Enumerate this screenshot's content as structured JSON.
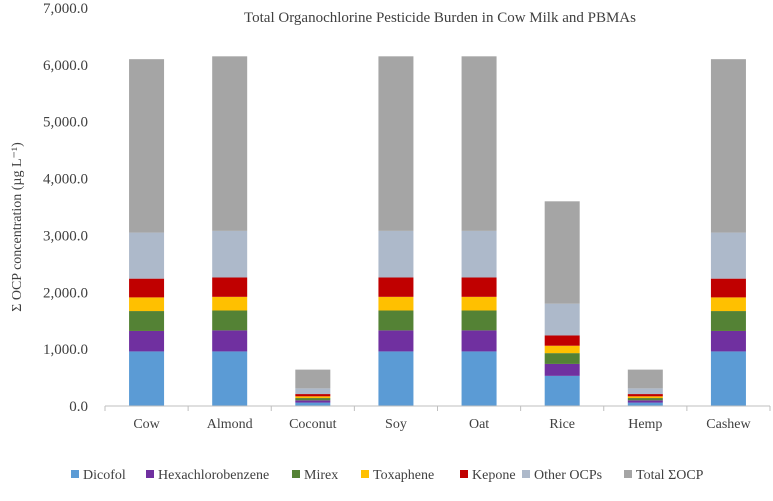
{
  "chart_data": {
    "type": "bar",
    "stacked": true,
    "title": "Total Organochlorine Pesticide Burden in Cow Milk and PBMAs",
    "ylabel": "Σ OCP concentration (µg L⁻¹)",
    "xlabel": "",
    "ylim": [
      0,
      7000
    ],
    "yticks": [
      0,
      1000,
      2000,
      3000,
      4000,
      5000,
      6000,
      7000
    ],
    "ytick_labels": [
      "0.0",
      "1,000.0",
      "2,000.0",
      "3,000.0",
      "4,000.0",
      "5,000.0",
      "6,000.0",
      "7,000.0"
    ],
    "categories": [
      "Cow",
      "Almond",
      "Coconut",
      "Soy",
      "Oat",
      "Rice",
      "Hemp",
      "Cashew"
    ],
    "legend_position": "bottom",
    "grid": false,
    "series": [
      {
        "name": "Dicofol",
        "color": "#5B9BD5",
        "values": [
          960,
          960,
          60,
          960,
          960,
          530,
          60,
          960
        ]
      },
      {
        "name": "Hexachlorobenzene",
        "color": "#7030A0",
        "values": [
          360,
          370,
          40,
          370,
          370,
          210,
          40,
          360
        ]
      },
      {
        "name": "Mirex",
        "color": "#548235",
        "values": [
          350,
          350,
          40,
          350,
          350,
          190,
          40,
          350
        ]
      },
      {
        "name": "Toxaphene",
        "color": "#FFC000",
        "values": [
          240,
          240,
          30,
          240,
          240,
          130,
          30,
          240
        ]
      },
      {
        "name": "Kepone",
        "color": "#C00000",
        "values": [
          330,
          340,
          40,
          340,
          340,
          180,
          40,
          330
        ]
      },
      {
        "name": "Other OCPs",
        "color": "#ADB9CA",
        "values": [
          810,
          820,
          100,
          820,
          820,
          560,
          100,
          810
        ]
      },
      {
        "name": "Total ΣOCP",
        "color": "#A5A5A5",
        "values": [
          3050,
          3070,
          330,
          3070,
          3070,
          1800,
          330,
          3050
        ]
      }
    ]
  }
}
